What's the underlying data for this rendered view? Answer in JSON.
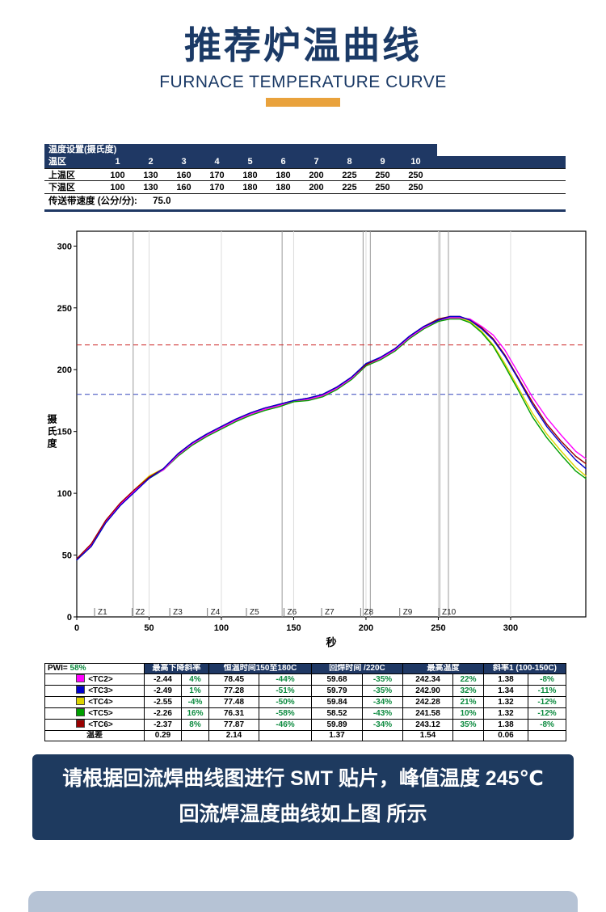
{
  "header": {
    "title": "推荐炉温曲线",
    "subtitle": "FURNACE TEMPERATURE CURVE"
  },
  "theme": {
    "navy": "#1f3864",
    "orange": "#e9a23c",
    "banner_navy": "#1e3a5f",
    "footer_bar": "#b6c3d5",
    "pct_green": "#0b8a3e"
  },
  "settings": {
    "title": "温度设置(摄氏度)",
    "zone_row": {
      "label": "温区",
      "values": [
        "1",
        "2",
        "3",
        "4",
        "5",
        "6",
        "7",
        "8",
        "9",
        "10"
      ]
    },
    "upper_row": {
      "label": "上温区",
      "values": [
        "100",
        "130",
        "160",
        "170",
        "180",
        "180",
        "200",
        "225",
        "250",
        "250"
      ]
    },
    "lower_row": {
      "label": "下温区",
      "values": [
        "100",
        "130",
        "160",
        "170",
        "180",
        "180",
        "200",
        "225",
        "250",
        "250"
      ]
    },
    "belt": {
      "label": "传送带速度 (公分/分):",
      "value": "75.0"
    }
  },
  "chart_data": {
    "type": "line",
    "title": "",
    "xlabel": "秒",
    "ylabel": "摄氏度",
    "xlim": [
      0,
      352
    ],
    "ylim": [
      0,
      312
    ],
    "xticks": [
      0,
      50,
      100,
      150,
      200,
      250,
      300
    ],
    "yticks": [
      0,
      50,
      100,
      150,
      200,
      250,
      300
    ],
    "grid": "vertical-light",
    "legend": "none",
    "reference_lines": [
      {
        "y": 220,
        "color": "#cc2222",
        "style": "dashed"
      },
      {
        "y": 180,
        "color": "#3344bb",
        "style": "dashed"
      }
    ],
    "markers_x": [
      39,
      142,
      198,
      203,
      251,
      257
    ],
    "zones": [
      {
        "label": "Z1",
        "x": 14
      },
      {
        "label": "Z2",
        "x": 40
      },
      {
        "label": "Z3",
        "x": 66
      },
      {
        "label": "Z4",
        "x": 92
      },
      {
        "label": "Z5",
        "x": 119
      },
      {
        "label": "Z6",
        "x": 145
      },
      {
        "label": "Z7",
        "x": 171
      },
      {
        "label": "Z8",
        "x": 198
      },
      {
        "label": "Z9",
        "x": 225
      },
      {
        "label": "Z10",
        "x": 252
      }
    ],
    "x": [
      0,
      10,
      20,
      30,
      40,
      50,
      60,
      70,
      80,
      90,
      100,
      110,
      120,
      130,
      140,
      150,
      160,
      170,
      180,
      190,
      200,
      210,
      220,
      230,
      240,
      250,
      258,
      265,
      272,
      280,
      288,
      296,
      305,
      315,
      325,
      335,
      345,
      352
    ],
    "series": [
      {
        "name": "TC2",
        "color": "#ff00ff",
        "values": [
          47,
          58,
          77,
          91,
          102,
          113,
          119,
          131,
          140,
          147,
          153,
          159,
          164,
          168,
          171,
          175,
          176,
          179,
          185,
          193,
          204,
          209,
          216,
          226,
          234,
          240,
          242,
          242,
          241,
          235,
          228,
          216,
          198,
          178,
          161,
          147,
          134,
          128
        ]
      },
      {
        "name": "TC3",
        "color": "#0000cc",
        "values": [
          46,
          57,
          76,
          90,
          101,
          112,
          120,
          132,
          141,
          148,
          154,
          160,
          165,
          169,
          172,
          175,
          177,
          180,
          186,
          194,
          205,
          210,
          217,
          227,
          235,
          240,
          243,
          243,
          240,
          233,
          224,
          211,
          193,
          172,
          154,
          140,
          127,
          120
        ]
      },
      {
        "name": "TC4",
        "color": "#ddd400",
        "values": [
          47,
          58,
          77,
          91,
          103,
          114,
          120,
          131,
          140,
          147,
          153,
          159,
          164,
          168,
          171,
          174,
          176,
          179,
          185,
          193,
          204,
          209,
          216,
          226,
          234,
          240,
          242,
          242,
          239,
          231,
          220,
          205,
          186,
          165,
          148,
          134,
          121,
          114
        ]
      },
      {
        "name": "TC5",
        "color": "#00a000",
        "values": [
          46,
          57,
          76,
          90,
          102,
          112,
          119,
          130,
          139,
          146,
          152,
          158,
          163,
          167,
          170,
          174,
          175,
          178,
          184,
          192,
          203,
          208,
          215,
          225,
          233,
          239,
          241,
          241,
          238,
          230,
          219,
          203,
          184,
          162,
          145,
          131,
          118,
          112
        ]
      },
      {
        "name": "TC6",
        "color": "#990000",
        "values": [
          47,
          59,
          78,
          92,
          103,
          113,
          120,
          132,
          141,
          148,
          154,
          160,
          165,
          169,
          172,
          175,
          177,
          180,
          186,
          194,
          204,
          210,
          217,
          227,
          235,
          241,
          243,
          243,
          240,
          234,
          225,
          212,
          194,
          174,
          156,
          142,
          130,
          124
        ]
      }
    ]
  },
  "results": {
    "pwi_label": "PWI=",
    "pwi_value": "58%",
    "headers": [
      "最高下降斜率",
      "恒温时间150至180C",
      "回焊时间 /220C",
      "最高温度",
      "斜率1 (100-150C)"
    ],
    "rows": [
      {
        "label": "<TC2>",
        "color": "#ff00ff",
        "cells": [
          [
            "-2.44",
            "4%"
          ],
          [
            "78.45",
            "-44%"
          ],
          [
            "59.68",
            "-35%"
          ],
          [
            "242.34",
            "22%"
          ],
          [
            "1.38",
            "-8%"
          ]
        ]
      },
      {
        "label": "<TC3>",
        "color": "#0000cc",
        "cells": [
          [
            "-2.49",
            "1%"
          ],
          [
            "77.28",
            "-51%"
          ],
          [
            "59.79",
            "-35%"
          ],
          [
            "242.90",
            "32%"
          ],
          [
            "1.34",
            "-11%"
          ]
        ]
      },
      {
        "label": "<TC4>",
        "color": "#ddd400",
        "cells": [
          [
            "-2.55",
            "-4%"
          ],
          [
            "77.48",
            "-50%"
          ],
          [
            "59.84",
            "-34%"
          ],
          [
            "242.28",
            "21%"
          ],
          [
            "1.32",
            "-12%"
          ]
        ]
      },
      {
        "label": "<TC5>",
        "color": "#00a000",
        "cells": [
          [
            "-2.26",
            "16%"
          ],
          [
            "76.31",
            "-58%"
          ],
          [
            "58.52",
            "-43%"
          ],
          [
            "241.58",
            "10%"
          ],
          [
            "1.32",
            "-12%"
          ]
        ]
      },
      {
        "label": "<TC6>",
        "color": "#990000",
        "cells": [
          [
            "-2.37",
            "8%"
          ],
          [
            "77.87",
            "-46%"
          ],
          [
            "59.89",
            "-34%"
          ],
          [
            "243.12",
            "35%"
          ],
          [
            "1.38",
            "-8%"
          ]
        ]
      }
    ],
    "diff_row": {
      "label": "温差",
      "values": [
        "0.29",
        "2.14",
        "1.37",
        "1.54",
        "0.06"
      ]
    }
  },
  "banner": {
    "line1": "请根据回流焊曲线图进行 SMT 贴片，峰值温度 245℃",
    "line2": "回流焊温度曲线如上图 所示"
  }
}
